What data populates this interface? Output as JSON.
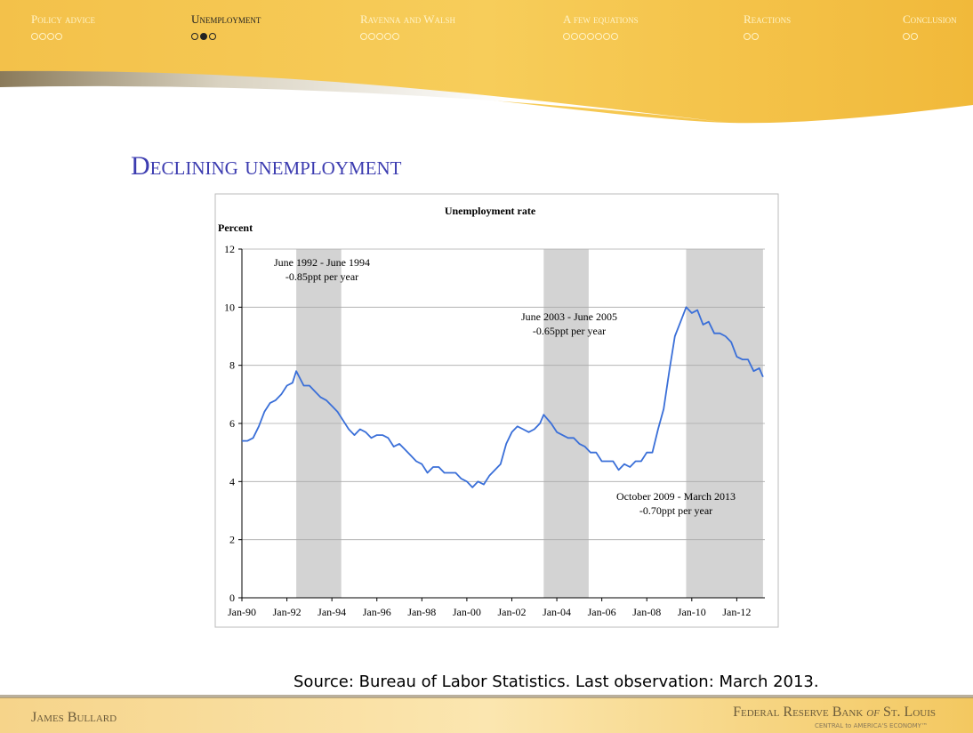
{
  "nav": [
    "Policy advice",
    "Unemployment",
    "Ravenna and Walsh",
    "A few equations",
    "Reactions",
    "Conclusion"
  ],
  "slide_title": "Declining unemployment",
  "source": "Source: Bureau of Labor Statistics. Last observation: March 2013.",
  "footer": {
    "author": "James Bullard",
    "bank_a": "Federal Reserve Bank",
    "bank_of": "of",
    "bank_b": "St. Louis",
    "tagline": "CENTRAL to AMERICA'S ECONOMY™"
  },
  "chart_data": {
    "type": "line",
    "title": "Unemployment rate",
    "y_label": "Percent",
    "color": "#3a6fd8",
    "grid": true,
    "x": [
      "1990-01",
      "1990-04",
      "1990-07",
      "1990-10",
      "1991-01",
      "1991-04",
      "1991-07",
      "1991-10",
      "1992-01",
      "1992-04",
      "1992-06",
      "1992-10",
      "1993-01",
      "1993-04",
      "1993-07",
      "1993-10",
      "1994-01",
      "1994-04",
      "1994-07",
      "1994-10",
      "1995-01",
      "1995-04",
      "1995-07",
      "1995-10",
      "1996-01",
      "1996-04",
      "1996-07",
      "1996-10",
      "1997-01",
      "1997-04",
      "1997-07",
      "1997-10",
      "1998-01",
      "1998-04",
      "1998-07",
      "1998-10",
      "1999-01",
      "1999-04",
      "1999-07",
      "1999-10",
      "2000-01",
      "2000-04",
      "2000-07",
      "2000-10",
      "2001-01",
      "2001-04",
      "2001-07",
      "2001-10",
      "2002-01",
      "2002-04",
      "2002-07",
      "2002-10",
      "2003-01",
      "2003-04",
      "2003-06",
      "2003-10",
      "2004-01",
      "2004-04",
      "2004-07",
      "2004-10",
      "2005-01",
      "2005-04",
      "2005-07",
      "2005-10",
      "2006-01",
      "2006-04",
      "2006-07",
      "2006-10",
      "2007-01",
      "2007-04",
      "2007-07",
      "2007-10",
      "2008-01",
      "2008-04",
      "2008-07",
      "2008-10",
      "2009-01",
      "2009-04",
      "2009-07",
      "2009-10",
      "2010-01",
      "2010-04",
      "2010-07",
      "2010-10",
      "2011-01",
      "2011-04",
      "2011-07",
      "2011-10",
      "2012-01",
      "2012-04",
      "2012-07",
      "2012-10",
      "2013-01",
      "2013-03"
    ],
    "values": [
      5.4,
      5.4,
      5.5,
      5.9,
      6.4,
      6.7,
      6.8,
      7.0,
      7.3,
      7.4,
      7.8,
      7.3,
      7.3,
      7.1,
      6.9,
      6.8,
      6.6,
      6.4,
      6.1,
      5.8,
      5.6,
      5.8,
      5.7,
      5.5,
      5.6,
      5.6,
      5.5,
      5.2,
      5.3,
      5.1,
      4.9,
      4.7,
      4.6,
      4.3,
      4.5,
      4.5,
      4.3,
      4.3,
      4.3,
      4.1,
      4.0,
      3.8,
      4.0,
      3.9,
      4.2,
      4.4,
      4.6,
      5.3,
      5.7,
      5.9,
      5.8,
      5.7,
      5.8,
      6.0,
      6.3,
      6.0,
      5.7,
      5.6,
      5.5,
      5.5,
      5.3,
      5.2,
      5.0,
      5.0,
      4.7,
      4.7,
      4.7,
      4.4,
      4.6,
      4.5,
      4.7,
      4.7,
      5.0,
      5.0,
      5.8,
      6.5,
      7.8,
      9.0,
      9.5,
      10.0,
      9.8,
      9.9,
      9.4,
      9.5,
      9.1,
      9.1,
      9.0,
      8.8,
      8.3,
      8.2,
      8.2,
      7.8,
      7.9,
      7.6
    ],
    "xlim": [
      "1990-01",
      "2013-04"
    ],
    "xticks": [
      {
        "value": "1990-01",
        "label": "Jan-90"
      },
      {
        "value": "1992-01",
        "label": "Jan-92"
      },
      {
        "value": "1994-01",
        "label": "Jan-94"
      },
      {
        "value": "1996-01",
        "label": "Jan-96"
      },
      {
        "value": "1998-01",
        "label": "Jan-98"
      },
      {
        "value": "2000-01",
        "label": "Jan-00"
      },
      {
        "value": "2002-01",
        "label": "Jan-02"
      },
      {
        "value": "2004-01",
        "label": "Jan-04"
      },
      {
        "value": "2006-01",
        "label": "Jan-06"
      },
      {
        "value": "2008-01",
        "label": "Jan-08"
      },
      {
        "value": "2010-01",
        "label": "Jan-10"
      },
      {
        "value": "2012-01",
        "label": "Jan-12"
      }
    ],
    "ylim": [
      0,
      12
    ],
    "yticks": [
      0,
      2,
      4,
      6,
      8,
      10,
      12
    ],
    "shaded": [
      {
        "start": "1992-06",
        "end": "1994-06",
        "label": "June 1992 - June 1994",
        "note": "-0.85ppt per year"
      },
      {
        "start": "2003-06",
        "end": "2005-06",
        "label": "June 2003 - June 2005",
        "note": "-0.65ppt per year"
      },
      {
        "start": "2009-10",
        "end": "2013-03",
        "label": "October 2009 - March 2013",
        "note": "-0.70ppt per year"
      }
    ]
  }
}
